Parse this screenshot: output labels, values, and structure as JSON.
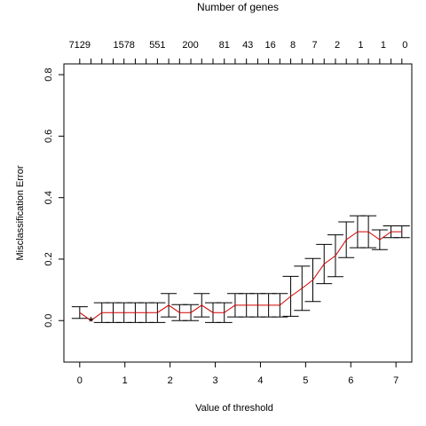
{
  "chart_data": {
    "type": "line",
    "title": "Number of genes",
    "xlabel": "Value of threshold",
    "ylabel": "Misclassification Error",
    "xlim": [
      -0.35,
      7.35
    ],
    "ylim": [
      -0.135,
      0.835
    ],
    "x_ticks": [
      0,
      1,
      2,
      3,
      4,
      5,
      6,
      7
    ],
    "y_ticks": [
      0.0,
      0.2,
      0.4,
      0.6,
      0.8
    ],
    "y_tick_labels": [
      "0.0",
      "0.2",
      "0.4",
      "0.6",
      "0.8"
    ],
    "top_axis": {
      "title": "Number of genes",
      "labels": [
        {
          "x": 0.0,
          "label": "7129"
        },
        {
          "x": 0.98,
          "label": "1578"
        },
        {
          "x": 1.72,
          "label": "551"
        },
        {
          "x": 2.45,
          "label": "200"
        },
        {
          "x": 3.2,
          "label": "81"
        },
        {
          "x": 3.72,
          "label": "43"
        },
        {
          "x": 4.22,
          "label": "16"
        },
        {
          "x": 4.72,
          "label": "8"
        },
        {
          "x": 5.2,
          "label": "7"
        },
        {
          "x": 5.7,
          "label": "2"
        },
        {
          "x": 6.22,
          "label": "1"
        },
        {
          "x": 6.72,
          "label": "1"
        },
        {
          "x": 7.2,
          "label": "0"
        }
      ]
    },
    "series": [
      {
        "color": "#d00000",
        "x": [
          0.0,
          0.25,
          0.49,
          0.74,
          0.98,
          1.23,
          1.47,
          1.72,
          1.97,
          2.21,
          2.46,
          2.7,
          2.95,
          3.2,
          3.44,
          3.69,
          3.94,
          4.18,
          4.43,
          4.67,
          4.92,
          5.16,
          5.41,
          5.66,
          5.9,
          6.15,
          6.39,
          6.64,
          6.89,
          7.13
        ],
        "values": [
          0.026,
          0.0,
          0.026,
          0.026,
          0.026,
          0.026,
          0.026,
          0.026,
          0.05,
          0.026,
          0.026,
          0.05,
          0.026,
          0.026,
          0.05,
          0.05,
          0.05,
          0.05,
          0.05,
          0.079,
          0.105,
          0.132,
          0.184,
          0.211,
          0.263,
          0.289,
          0.289,
          0.263,
          0.289,
          0.289
        ],
        "se": [
          0.019,
          0.0,
          0.032,
          0.032,
          0.032,
          0.032,
          0.032,
          0.032,
          0.038,
          0.026,
          0.026,
          0.038,
          0.032,
          0.032,
          0.038,
          0.038,
          0.038,
          0.038,
          0.038,
          0.065,
          0.072,
          0.07,
          0.064,
          0.068,
          0.058,
          0.052,
          0.052,
          0.032,
          0.019,
          0.019
        ]
      }
    ],
    "min_point": {
      "x": 0.25,
      "y": 0.0,
      "marker": "*"
    }
  }
}
